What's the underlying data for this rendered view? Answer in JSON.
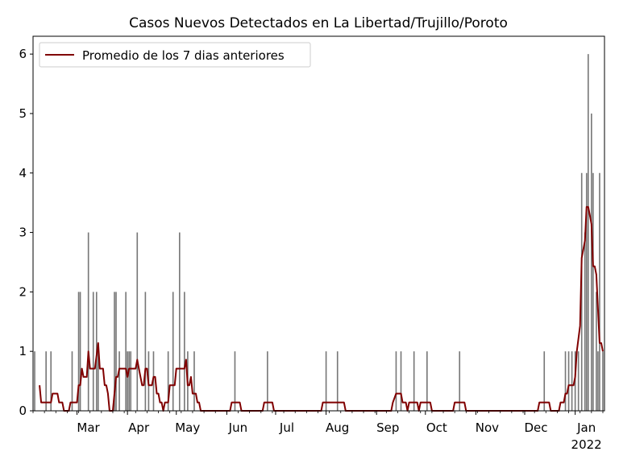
{
  "chart_data": {
    "type": "bar+line",
    "title": "Casos Nuevos Detectados en La Libertad/Trujillo/Poroto",
    "xlabel": "",
    "ylabel": "",
    "ylim": [
      0,
      6.3
    ],
    "yticks": [
      0,
      1,
      2,
      3,
      4,
      5,
      6
    ],
    "xticks": [
      {
        "day": 27,
        "label": "Mar"
      },
      {
        "day": 58,
        "label": "Apr"
      },
      {
        "day": 88,
        "label": "May"
      },
      {
        "day": 119,
        "label": "Jun"
      },
      {
        "day": 149,
        "label": "Jul"
      },
      {
        "day": 180,
        "label": "Aug"
      },
      {
        "day": 211,
        "label": "Sep"
      },
      {
        "day": 241,
        "label": "Oct"
      },
      {
        "day": 272,
        "label": "Nov"
      },
      {
        "day": 302,
        "label": "Dec"
      },
      {
        "day": 333,
        "label": "Jan"
      }
    ],
    "year_label": {
      "day": 333,
      "label": "2022"
    },
    "legend": {
      "label": "Promedio de los 7 dias anteriores",
      "position": "top-left"
    },
    "bar_color": "#777777",
    "line_color": "#800000",
    "bars": [
      [
        1,
        1
      ],
      [
        8,
        1
      ],
      [
        11,
        1
      ],
      [
        24,
        1
      ],
      [
        28,
        2
      ],
      [
        29,
        2
      ],
      [
        34,
        3
      ],
      [
        37,
        2
      ],
      [
        39,
        2
      ],
      [
        40,
        1
      ],
      [
        50,
        2
      ],
      [
        51,
        2
      ],
      [
        53,
        1
      ],
      [
        57,
        2
      ],
      [
        58,
        1
      ],
      [
        59,
        1
      ],
      [
        60,
        1
      ],
      [
        64,
        3
      ],
      [
        69,
        2
      ],
      [
        71,
        1
      ],
      [
        74,
        1
      ],
      [
        83,
        1
      ],
      [
        86,
        2
      ],
      [
        90,
        3
      ],
      [
        93,
        2
      ],
      [
        95,
        1
      ],
      [
        99,
        1
      ],
      [
        124,
        1
      ],
      [
        144,
        1
      ],
      [
        180,
        1
      ],
      [
        187,
        1
      ],
      [
        223,
        1
      ],
      [
        226,
        1
      ],
      [
        234,
        1
      ],
      [
        242,
        1
      ],
      [
        262,
        1
      ],
      [
        314,
        1
      ],
      [
        327,
        1
      ],
      [
        329,
        1
      ],
      [
        331,
        1
      ],
      [
        333,
        1
      ],
      [
        335,
        1
      ],
      [
        337,
        4
      ],
      [
        339,
        3
      ],
      [
        340,
        4
      ],
      [
        341,
        6
      ],
      [
        343,
        5
      ],
      [
        344,
        4
      ],
      [
        346,
        2
      ],
      [
        347,
        1
      ],
      [
        348,
        4
      ],
      [
        350,
        1
      ]
    ],
    "avg": [
      [
        4,
        0.43
      ],
      [
        5,
        0.14
      ],
      [
        10,
        0.14
      ],
      [
        11,
        0.14
      ],
      [
        12,
        0.29
      ],
      [
        15,
        0.29
      ],
      [
        16,
        0.14
      ],
      [
        18,
        0.14
      ],
      [
        19,
        0
      ],
      [
        22,
        0
      ],
      [
        23,
        0.14
      ],
      [
        27,
        0.14
      ],
      [
        28,
        0.43
      ],
      [
        29,
        0.43
      ],
      [
        30,
        0.71
      ],
      [
        31,
        0.57
      ],
      [
        33,
        0.57
      ],
      [
        34,
        1.0
      ],
      [
        35,
        0.71
      ],
      [
        38,
        0.71
      ],
      [
        40,
        1.14
      ],
      [
        41,
        0.71
      ],
      [
        43,
        0.71
      ],
      [
        44,
        0.43
      ],
      [
        45,
        0.43
      ],
      [
        46,
        0.29
      ],
      [
        47,
        0
      ],
      [
        49,
        0
      ],
      [
        50,
        0.29
      ],
      [
        51,
        0.57
      ],
      [
        52,
        0.57
      ],
      [
        53,
        0.71
      ],
      [
        57,
        0.71
      ],
      [
        58,
        0.57
      ],
      [
        59,
        0.71
      ],
      [
        63,
        0.71
      ],
      [
        64,
        0.86
      ],
      [
        65,
        0.71
      ],
      [
        67,
        0.43
      ],
      [
        68,
        0.43
      ],
      [
        69,
        0.71
      ],
      [
        70,
        0.71
      ],
      [
        71,
        0.43
      ],
      [
        73,
        0.43
      ],
      [
        74,
        0.57
      ],
      [
        75,
        0.57
      ],
      [
        76,
        0.29
      ],
      [
        77,
        0.29
      ],
      [
        78,
        0.14
      ],
      [
        79,
        0.14
      ],
      [
        80,
        0
      ],
      [
        81,
        0.14
      ],
      [
        82,
        0.14
      ],
      [
        83,
        0.14
      ],
      [
        84,
        0.43
      ],
      [
        86,
        0.43
      ],
      [
        87,
        0.43
      ],
      [
        88,
        0.71
      ],
      [
        93,
        0.71
      ],
      [
        94,
        0.86
      ],
      [
        95,
        0.43
      ],
      [
        96,
        0.43
      ],
      [
        97,
        0.57
      ],
      [
        98,
        0.29
      ],
      [
        100,
        0.29
      ],
      [
        101,
        0.14
      ],
      [
        102,
        0.14
      ],
      [
        103,
        0
      ],
      [
        121,
        0
      ],
      [
        122,
        0.14
      ],
      [
        127,
        0.14
      ],
      [
        128,
        0
      ],
      [
        141,
        0
      ],
      [
        142,
        0.14
      ],
      [
        147,
        0.14
      ],
      [
        148,
        0
      ],
      [
        177,
        0
      ],
      [
        178,
        0.14
      ],
      [
        191,
        0.14
      ],
      [
        192,
        0
      ],
      [
        220,
        0
      ],
      [
        221,
        0.14
      ],
      [
        223,
        0.29
      ],
      [
        226,
        0.29
      ],
      [
        227,
        0.14
      ],
      [
        229,
        0.14
      ],
      [
        230,
        0
      ],
      [
        231,
        0.14
      ],
      [
        236,
        0.14
      ],
      [
        237,
        0
      ],
      [
        238,
        0.14
      ],
      [
        244,
        0.14
      ],
      [
        245,
        0
      ],
      [
        258,
        0
      ],
      [
        259,
        0.14
      ],
      [
        265,
        0.14
      ],
      [
        266,
        0
      ],
      [
        310,
        0
      ],
      [
        311,
        0.14
      ],
      [
        317,
        0.14
      ],
      [
        318,
        0
      ],
      [
        323,
        0
      ],
      [
        324,
        0.14
      ],
      [
        326,
        0.14
      ],
      [
        327,
        0.29
      ],
      [
        328,
        0.29
      ],
      [
        329,
        0.43
      ],
      [
        332,
        0.43
      ],
      [
        333,
        0.57
      ],
      [
        334,
        1.0
      ],
      [
        336,
        1.43
      ],
      [
        337,
        2.57
      ],
      [
        339,
        2.86
      ],
      [
        340,
        3.43
      ],
      [
        341,
        3.43
      ],
      [
        342,
        3.29
      ],
      [
        343,
        3.14
      ],
      [
        344,
        2.43
      ],
      [
        345,
        2.43
      ],
      [
        346,
        2.29
      ],
      [
        347,
        1.71
      ],
      [
        348,
        1.14
      ],
      [
        349,
        1.14
      ],
      [
        350,
        1.0
      ]
    ]
  }
}
